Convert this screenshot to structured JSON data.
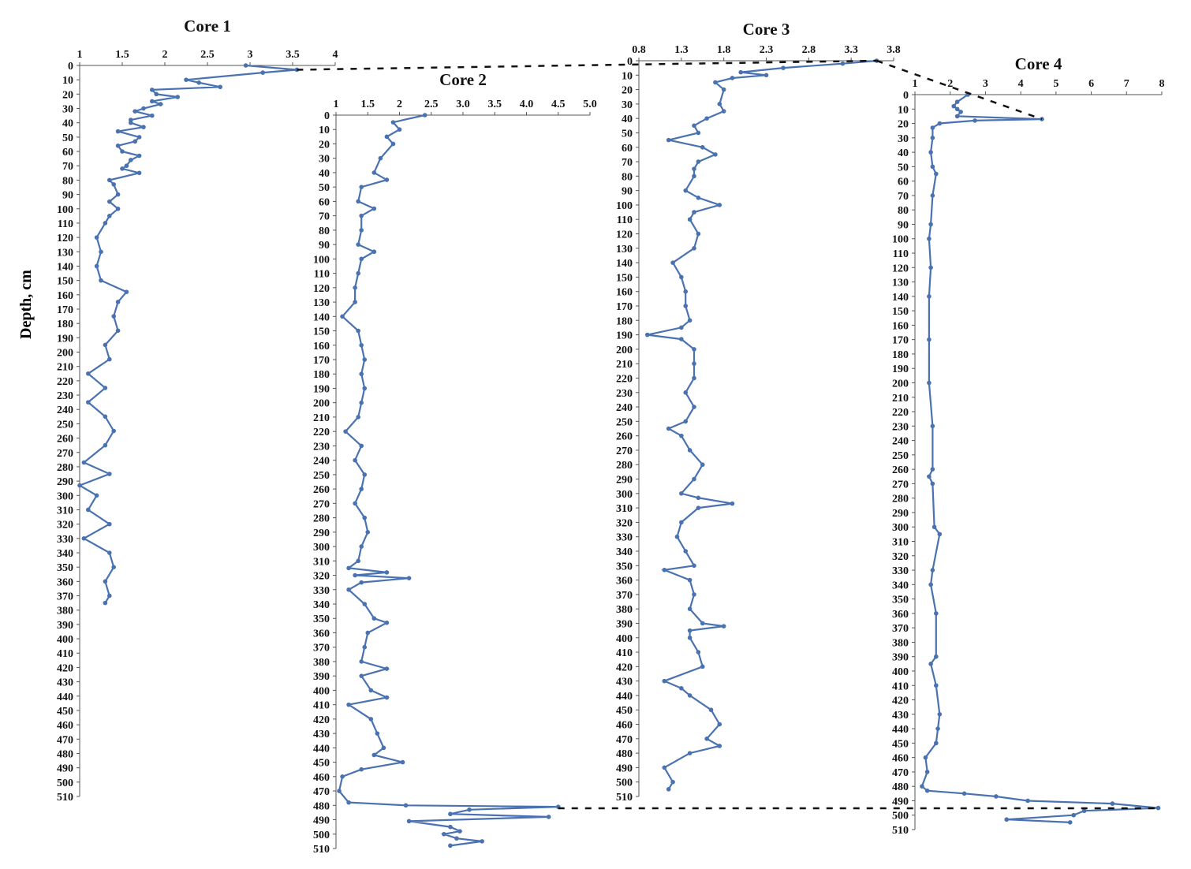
{
  "chart_data": [
    {
      "type": "line",
      "title": "Core 1",
      "ylabel": "Depth, cm",
      "xlim": [
        1,
        4
      ],
      "xticks": [
        "1",
        "1.5",
        "2",
        "2.5",
        "3",
        "3.5",
        "4"
      ],
      "xtick_values": [
        1,
        1.5,
        2,
        2.5,
        3,
        3.5,
        4
      ],
      "ylim": [
        0,
        510
      ],
      "depth": [
        0,
        3,
        5,
        10,
        12,
        15,
        17,
        20,
        22,
        25,
        27,
        30,
        32,
        35,
        38,
        40,
        43,
        46,
        50,
        53,
        56,
        60,
        63,
        66,
        70,
        72,
        75,
        80,
        83,
        90,
        95,
        100,
        105,
        110,
        120,
        130,
        140,
        150,
        158,
        165,
        175,
        185,
        195,
        205,
        215,
        225,
        235,
        245,
        255,
        265,
        277,
        285,
        293,
        300,
        310,
        320,
        330,
        340,
        350,
        360,
        370,
        375
      ],
      "values": [
        2.95,
        3.55,
        3.15,
        2.25,
        2.4,
        2.65,
        1.85,
        1.9,
        2.15,
        1.85,
        1.95,
        1.75,
        1.65,
        1.85,
        1.6,
        1.6,
        1.75,
        1.45,
        1.7,
        1.65,
        1.45,
        1.5,
        1.7,
        1.6,
        1.55,
        1.5,
        1.7,
        1.35,
        1.4,
        1.45,
        1.35,
        1.45,
        1.35,
        1.3,
        1.2,
        1.25,
        1.2,
        1.25,
        1.55,
        1.45,
        1.4,
        1.45,
        1.3,
        1.35,
        1.1,
        1.3,
        1.1,
        1.3,
        1.4,
        1.3,
        1.05,
        1.35,
        1.0,
        1.2,
        1.1,
        1.35,
        1.05,
        1.35,
        1.4,
        1.3,
        1.35,
        1.3
      ]
    },
    {
      "type": "line",
      "title": "Core 2",
      "xlim": [
        1,
        5
      ],
      "xticks": [
        "1",
        "1.5",
        "2",
        "2.5",
        "3.0",
        "3.5",
        "4.0",
        "4.5",
        "5.0"
      ],
      "xtick_values": [
        1,
        1.5,
        2,
        2.5,
        3,
        3.5,
        4,
        4.5,
        5
      ],
      "ylim": [
        0,
        510
      ],
      "depth": [
        0,
        5,
        10,
        15,
        20,
        30,
        40,
        45,
        50,
        60,
        65,
        70,
        80,
        90,
        95,
        100,
        110,
        120,
        130,
        140,
        150,
        160,
        170,
        180,
        190,
        200,
        210,
        220,
        230,
        240,
        250,
        260,
        270,
        280,
        290,
        300,
        310,
        315,
        318,
        320,
        322,
        325,
        330,
        340,
        350,
        353,
        360,
        370,
        380,
        385,
        390,
        400,
        405,
        410,
        420,
        430,
        440,
        445,
        450,
        455,
        460,
        470,
        478,
        480,
        481,
        483,
        486,
        488,
        491,
        495,
        498,
        500,
        503,
        505,
        508
      ],
      "values": [
        2.4,
        1.9,
        2.0,
        1.8,
        1.9,
        1.7,
        1.6,
        1.8,
        1.4,
        1.35,
        1.6,
        1.4,
        1.4,
        1.35,
        1.6,
        1.4,
        1.35,
        1.3,
        1.3,
        1.1,
        1.35,
        1.4,
        1.45,
        1.4,
        1.45,
        1.4,
        1.35,
        1.15,
        1.4,
        1.3,
        1.45,
        1.4,
        1.3,
        1.45,
        1.5,
        1.4,
        1.35,
        1.2,
        1.8,
        1.3,
        2.15,
        1.4,
        1.2,
        1.45,
        1.6,
        1.8,
        1.5,
        1.45,
        1.4,
        1.8,
        1.4,
        1.55,
        1.8,
        1.2,
        1.55,
        1.65,
        1.75,
        1.6,
        2.05,
        1.4,
        1.1,
        1.05,
        1.2,
        2.1,
        4.5,
        3.1,
        2.8,
        4.35,
        2.15,
        2.8,
        2.95,
        2.7,
        2.9,
        3.3,
        2.8
      ]
    },
    {
      "type": "line",
      "title": "Core 3",
      "xlim": [
        0.8,
        3.8
      ],
      "xticks": [
        "0.8",
        "1.3",
        "1.8",
        "2.3",
        "2.8",
        "3.3",
        "3.8"
      ],
      "xtick_values": [
        0.8,
        1.3,
        1.8,
        2.3,
        2.8,
        3.3,
        3.8
      ],
      "ylim": [
        0,
        510
      ],
      "depth": [
        0,
        2,
        5,
        8,
        10,
        12,
        15,
        20,
        30,
        35,
        40,
        45,
        50,
        55,
        60,
        65,
        70,
        75,
        80,
        90,
        95,
        100,
        105,
        110,
        120,
        130,
        140,
        150,
        160,
        170,
        180,
        185,
        190,
        193,
        200,
        210,
        220,
        230,
        240,
        250,
        255,
        260,
        270,
        280,
        290,
        300,
        303,
        307,
        310,
        320,
        330,
        340,
        350,
        353,
        360,
        370,
        380,
        390,
        392,
        395,
        400,
        410,
        420,
        430,
        435,
        440,
        450,
        460,
        470,
        475,
        480,
        490,
        500,
        505
      ],
      "values": [
        3.6,
        3.2,
        2.5,
        2.0,
        2.3,
        1.9,
        1.7,
        1.8,
        1.75,
        1.8,
        1.6,
        1.45,
        1.5,
        1.15,
        1.55,
        1.7,
        1.5,
        1.45,
        1.45,
        1.35,
        1.5,
        1.75,
        1.45,
        1.4,
        1.5,
        1.45,
        1.2,
        1.3,
        1.35,
        1.35,
        1.4,
        1.3,
        0.9,
        1.3,
        1.45,
        1.45,
        1.45,
        1.35,
        1.45,
        1.35,
        1.15,
        1.3,
        1.4,
        1.55,
        1.45,
        1.3,
        1.5,
        1.9,
        1.5,
        1.3,
        1.25,
        1.35,
        1.45,
        1.1,
        1.4,
        1.45,
        1.4,
        1.55,
        1.8,
        1.4,
        1.4,
        1.5,
        1.55,
        1.1,
        1.3,
        1.4,
        1.65,
        1.75,
        1.6,
        1.75,
        1.4,
        1.1,
        1.2,
        1.15
      ]
    },
    {
      "type": "line",
      "title": "Core 4",
      "xlim": [
        1,
        8
      ],
      "xticks": [
        "1",
        "2",
        "3",
        "4",
        "5",
        "6",
        "7",
        "8"
      ],
      "xtick_values": [
        1,
        2,
        3,
        4,
        5,
        6,
        7,
        8
      ],
      "ylim": [
        0,
        510
      ],
      "depth": [
        0,
        5,
        8,
        10,
        12,
        15,
        17,
        18,
        20,
        23,
        30,
        40,
        50,
        55,
        70,
        90,
        100,
        120,
        140,
        170,
        200,
        230,
        260,
        265,
        270,
        300,
        305,
        330,
        340,
        360,
        390,
        395,
        410,
        430,
        440,
        450,
        460,
        470,
        480,
        483,
        485,
        487,
        490,
        492,
        495,
        497,
        500,
        503,
        505
      ],
      "values": [
        2.5,
        2.2,
        2.1,
        2.2,
        2.3,
        2.2,
        4.6,
        2.7,
        1.7,
        1.5,
        1.5,
        1.45,
        1.5,
        1.6,
        1.5,
        1.45,
        1.4,
        1.45,
        1.4,
        1.4,
        1.4,
        1.5,
        1.5,
        1.4,
        1.5,
        1.55,
        1.7,
        1.5,
        1.45,
        1.6,
        1.6,
        1.45,
        1.6,
        1.7,
        1.65,
        1.6,
        1.3,
        1.35,
        1.2,
        1.35,
        2.4,
        3.3,
        4.2,
        6.6,
        7.9,
        5.8,
        5.5,
        3.6,
        5.4
      ]
    }
  ],
  "ylabel": "Depth, cm",
  "colors": {
    "series": "#4a72b0",
    "axis": "#333333"
  }
}
